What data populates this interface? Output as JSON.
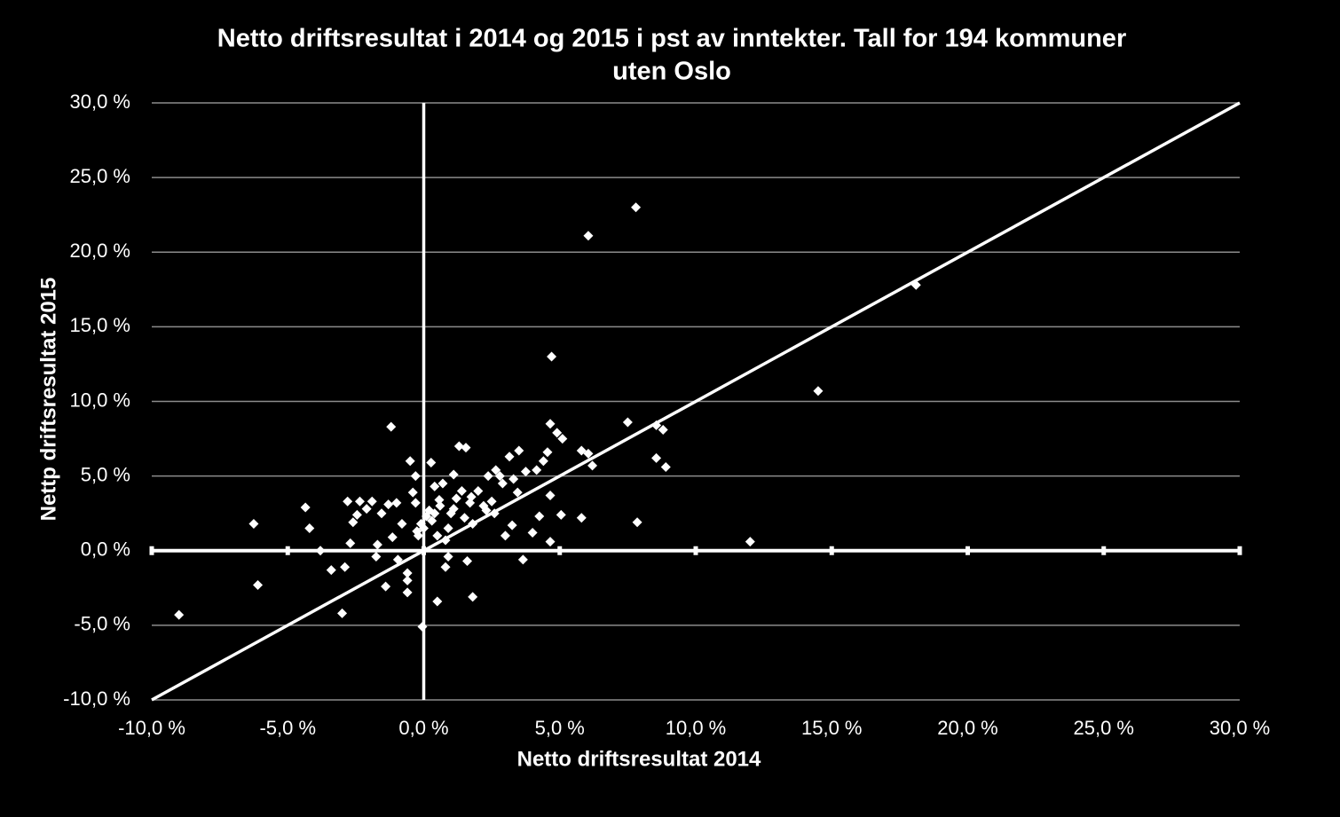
{
  "chart_data": {
    "type": "scatter",
    "title": [
      "Netto driftsresultat i 2014 og 2015 i pst av inntekter. Tall for 194 kommuner",
      "uten Oslo"
    ],
    "x_label": "Netto driftsresultat 2014",
    "y_label": "Nettp driftsresultat 2015",
    "xlim": [
      -10,
      30
    ],
    "ylim": [
      -10,
      30
    ],
    "xticks": [
      {
        "value": -10,
        "label": "-10,0 %"
      },
      {
        "value": -5,
        "label": "-5,0 %"
      },
      {
        "value": 0,
        "label": "0,0 %"
      },
      {
        "value": 5,
        "label": "5,0 %"
      },
      {
        "value": 10,
        "label": "10,0 %"
      },
      {
        "value": 15,
        "label": "15,0 %"
      },
      {
        "value": 20,
        "label": "20,0 %"
      },
      {
        "value": 25,
        "label": "25,0 %"
      },
      {
        "value": 30,
        "label": "30,0 %"
      }
    ],
    "yticks": [
      {
        "value": -10,
        "label": "-10,0 %"
      },
      {
        "value": -5,
        "label": "-5,0 %"
      },
      {
        "value": 0,
        "label": "0,0 %"
      },
      {
        "value": 5,
        "label": "5,0 %"
      },
      {
        "value": 10,
        "label": "10,0 %"
      },
      {
        "value": 15,
        "label": "15,0 %"
      },
      {
        "value": 20,
        "label": "20,0 %"
      },
      {
        "value": 25,
        "label": "25,0 %"
      },
      {
        "value": 30,
        "label": "30,0 %"
      }
    ],
    "grid": true,
    "identity_line": true,
    "color": "#ffffff",
    "x": [
      -9.0,
      -6.25,
      -6.1,
      -4.35,
      -4.2,
      -3.8,
      -3.4,
      -3.0,
      -2.9,
      -2.8,
      -2.7,
      -2.6,
      -2.45,
      -2.35,
      -2.1,
      -1.9,
      -1.75,
      -1.7,
      -1.55,
      -1.4,
      -1.3,
      -1.2,
      -1.15,
      -1.0,
      -0.95,
      -0.8,
      -0.6,
      -0.6,
      -0.6,
      -0.5,
      -0.4,
      -0.3,
      -0.3,
      -0.05,
      -0.25,
      -0.1,
      0.1,
      0.2,
      0.27,
      0.4,
      0.5,
      0.57,
      0.7,
      0.8,
      0.9,
      1.0,
      1.1,
      1.3,
      1.4,
      1.55,
      1.6,
      1.75,
      1.8,
      1.8,
      2.0,
      2.3,
      2.37,
      2.5,
      2.65,
      2.8,
      3.0,
      3.15,
      3.25,
      3.45,
      3.5,
      3.65,
      3.75,
      4.0,
      4.15,
      4.25,
      4.4,
      4.55,
      4.65,
      4.65,
      4.7,
      4.65,
      4.9,
      5.05,
      5.1,
      5.8,
      5.8,
      6.05,
      6.05,
      6.2,
      7.5,
      7.8,
      7.85,
      8.55,
      8.55,
      8.8,
      8.9,
      12.0,
      14.5,
      18.1,
      0.3,
      0.6,
      0.9,
      1.2,
      0.5,
      1.5,
      2.2,
      2.9,
      0.0,
      0.8,
      1.1,
      2.6,
      3.3,
      0.4,
      -0.2,
      1.7
    ],
    "values": [
      -4.3,
      1.8,
      -2.3,
      2.9,
      1.5,
      0.0,
      -1.3,
      -4.2,
      -1.1,
      3.3,
      0.5,
      1.9,
      2.4,
      3.3,
      2.8,
      3.3,
      -0.4,
      0.4,
      2.5,
      -2.4,
      3.1,
      8.3,
      0.9,
      3.2,
      -0.6,
      1.8,
      -1.5,
      -2.0,
      -2.8,
      6.0,
      3.9,
      5.0,
      3.2,
      -5.1,
      1.3,
      1.8,
      2.3,
      2.7,
      5.9,
      4.3,
      -3.4,
      3.4,
      4.5,
      -1.1,
      -0.4,
      2.5,
      5.1,
      7.0,
      4.0,
      6.9,
      -0.7,
      3.6,
      -3.1,
      1.8,
      4.0,
      2.7,
      5.0,
      3.3,
      5.4,
      5.0,
      1.0,
      6.3,
      1.7,
      3.9,
      6.7,
      -0.6,
      5.3,
      1.2,
      5.4,
      2.3,
      6.0,
      6.6,
      3.7,
      8.5,
      13.0,
      0.6,
      7.9,
      2.4,
      7.5,
      2.2,
      6.7,
      6.5,
      21.1,
      5.7,
      8.6,
      23.0,
      1.9,
      6.2,
      8.4,
      8.1,
      5.6,
      0.6,
      10.7,
      17.8,
      2.0,
      3.0,
      1.5,
      3.5,
      1.0,
      2.2,
      3.0,
      4.5,
      1.5,
      0.7,
      2.8,
      2.5,
      4.8,
      2.5,
      1.0,
      3.2
    ]
  }
}
